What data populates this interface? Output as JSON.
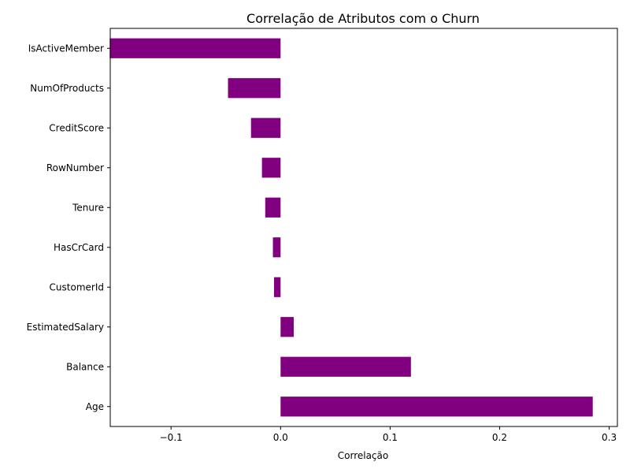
{
  "chart_data": {
    "type": "bar",
    "orientation": "horizontal",
    "title": "Correlação de Atributos com o Churn",
    "xlabel": "Correlação",
    "ylabel": "",
    "categories": [
      "IsActiveMember",
      "NumOfProducts",
      "CreditScore",
      "RowNumber",
      "Tenure",
      "HasCrCard",
      "CustomerId",
      "EstimatedSalary",
      "Balance",
      "Age"
    ],
    "values": [
      -0.156,
      -0.048,
      -0.027,
      -0.017,
      -0.014,
      -0.007,
      -0.006,
      0.012,
      0.119,
      0.285
    ],
    "xlim": [
      -0.1555,
      0.3075
    ],
    "xticks": [
      -0.1,
      0.0,
      0.1,
      0.2,
      0.3
    ],
    "xtick_labels": [
      "−0.1",
      "0.0",
      "0.1",
      "0.2",
      "0.3"
    ],
    "bar_color": "#800080",
    "grid": false,
    "legend": "none"
  }
}
